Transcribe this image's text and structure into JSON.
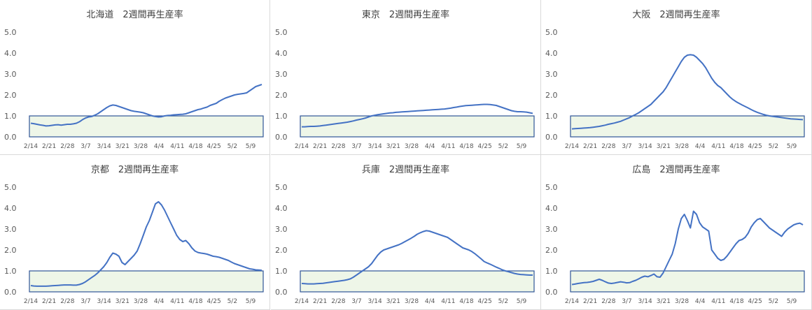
{
  "chart_data": [
    {
      "type": "line",
      "title": "北海道　2週間再生産率",
      "yticks": [
        "0.0",
        "1.0",
        "2.0",
        "3.0",
        "4.0",
        "5.0"
      ],
      "ylim": [
        0,
        5
      ],
      "xticks": [
        "2/14",
        "2/21",
        "2/28",
        "3/7",
        "3/14",
        "3/21",
        "3/28",
        "4/4",
        "4/11",
        "4/18",
        "4/25",
        "5/2",
        "5/9"
      ],
      "shaded_band": [
        0,
        1
      ],
      "series": [
        {
          "values": [
            0.65,
            0.63,
            0.6,
            0.57,
            0.55,
            0.52,
            0.53,
            0.55,
            0.57,
            0.58,
            0.56,
            0.58,
            0.6,
            0.6,
            0.62,
            0.65,
            0.72,
            0.82,
            0.9,
            0.95,
            0.97,
            1.03,
            1.1,
            1.2,
            1.3,
            1.4,
            1.48,
            1.52,
            1.5,
            1.45,
            1.4,
            1.35,
            1.3,
            1.25,
            1.22,
            1.2,
            1.18,
            1.15,
            1.1,
            1.05,
            1.0,
            0.97,
            0.95,
            0.96,
            1.0,
            1.02,
            1.03,
            1.05,
            1.06,
            1.07,
            1.08,
            1.1,
            1.15,
            1.2,
            1.25,
            1.3,
            1.33,
            1.38,
            1.42,
            1.5,
            1.55,
            1.6,
            1.7,
            1.78,
            1.85,
            1.9,
            1.95,
            2.0,
            2.03,
            2.05,
            2.07,
            2.1,
            2.2,
            2.3,
            2.4,
            2.45,
            2.5
          ]
        }
      ]
    },
    {
      "type": "line",
      "title": "東京　2週間再生産率",
      "yticks": [
        "0.0",
        "1.0",
        "2.0",
        "3.0",
        "4.0",
        "5.0"
      ],
      "ylim": [
        0,
        5
      ],
      "xticks": [
        "2/14",
        "2/21",
        "2/28",
        "3/7",
        "3/14",
        "3/21",
        "3/28",
        "4/4",
        "4/11",
        "4/18",
        "4/25",
        "5/2",
        "5/9"
      ],
      "shaded_band": [
        0,
        1
      ],
      "series": [
        {
          "values": [
            0.48,
            0.48,
            0.49,
            0.5,
            0.5,
            0.51,
            0.52,
            0.54,
            0.56,
            0.58,
            0.6,
            0.62,
            0.64,
            0.66,
            0.68,
            0.7,
            0.73,
            0.76,
            0.8,
            0.83,
            0.86,
            0.9,
            0.95,
            1.0,
            1.03,
            1.06,
            1.08,
            1.1,
            1.12,
            1.14,
            1.15,
            1.17,
            1.18,
            1.19,
            1.2,
            1.21,
            1.22,
            1.23,
            1.24,
            1.25,
            1.26,
            1.27,
            1.28,
            1.29,
            1.3,
            1.31,
            1.32,
            1.33,
            1.35,
            1.37,
            1.4,
            1.42,
            1.45,
            1.47,
            1.49,
            1.5,
            1.51,
            1.52,
            1.53,
            1.54,
            1.55,
            1.55,
            1.54,
            1.52,
            1.5,
            1.45,
            1.4,
            1.35,
            1.3,
            1.25,
            1.22,
            1.2,
            1.2,
            1.19,
            1.18,
            1.15,
            1.12
          ]
        }
      ]
    },
    {
      "type": "line",
      "title": "大阪　2週間再生産率",
      "yticks": [
        "0.0",
        "1.0",
        "2.0",
        "3.0",
        "4.0",
        "5.0"
      ],
      "ylim": [
        0,
        5
      ],
      "xticks": [
        "2/14",
        "2/21",
        "2/28",
        "3/7",
        "3/14",
        "3/21",
        "3/28",
        "4/4",
        "4/11",
        "4/18",
        "4/25",
        "5/2",
        "5/9"
      ],
      "shaded_band": [
        0,
        1
      ],
      "series": [
        {
          "values": [
            0.38,
            0.39,
            0.4,
            0.41,
            0.42,
            0.43,
            0.44,
            0.46,
            0.48,
            0.5,
            0.53,
            0.56,
            0.6,
            0.63,
            0.66,
            0.7,
            0.74,
            0.8,
            0.86,
            0.92,
            1.0,
            1.07,
            1.15,
            1.25,
            1.35,
            1.45,
            1.55,
            1.7,
            1.85,
            2.0,
            2.15,
            2.35,
            2.6,
            2.85,
            3.1,
            3.35,
            3.6,
            3.8,
            3.9,
            3.92,
            3.9,
            3.8,
            3.65,
            3.5,
            3.3,
            3.05,
            2.8,
            2.6,
            2.45,
            2.35,
            2.2,
            2.05,
            1.9,
            1.78,
            1.68,
            1.6,
            1.52,
            1.45,
            1.38,
            1.3,
            1.23,
            1.17,
            1.12,
            1.07,
            1.03,
            1.0,
            0.98,
            0.96,
            0.94,
            0.92,
            0.9,
            0.88,
            0.86,
            0.85,
            0.84,
            0.83,
            0.82
          ]
        }
      ]
    },
    {
      "type": "line",
      "title": "京都　2週間再生産率",
      "yticks": [
        "0.0",
        "1.0",
        "2.0",
        "3.0",
        "4.0",
        "5.0"
      ],
      "ylim": [
        0,
        5
      ],
      "xticks": [
        "2/14",
        "2/21",
        "2/28",
        "3/7",
        "3/14",
        "3/21",
        "3/28",
        "4/4",
        "4/11",
        "4/18",
        "4/25",
        "5/2",
        "5/9"
      ],
      "shaded_band": [
        0,
        1
      ],
      "series": [
        {
          "values": [
            0.3,
            0.28,
            0.27,
            0.27,
            0.27,
            0.27,
            0.28,
            0.29,
            0.3,
            0.31,
            0.32,
            0.33,
            0.33,
            0.33,
            0.32,
            0.32,
            0.35,
            0.4,
            0.48,
            0.58,
            0.68,
            0.78,
            0.9,
            1.05,
            1.2,
            1.4,
            1.65,
            1.85,
            1.8,
            1.7,
            1.4,
            1.3,
            1.45,
            1.6,
            1.75,
            1.95,
            2.3,
            2.7,
            3.1,
            3.4,
            3.8,
            4.2,
            4.3,
            4.15,
            3.9,
            3.6,
            3.3,
            3.0,
            2.7,
            2.5,
            2.4,
            2.45,
            2.3,
            2.1,
            1.95,
            1.88,
            1.85,
            1.83,
            1.8,
            1.75,
            1.7,
            1.68,
            1.65,
            1.6,
            1.55,
            1.5,
            1.42,
            1.35,
            1.3,
            1.25,
            1.2,
            1.15,
            1.1,
            1.08,
            1.05,
            1.04,
            1.03
          ]
        }
      ]
    },
    {
      "type": "line",
      "title": "兵庫　2週間再生産率",
      "yticks": [
        "0.0",
        "1.0",
        "2.0",
        "3.0",
        "4.0",
        "5.0"
      ],
      "ylim": [
        0,
        5
      ],
      "xticks": [
        "2/14",
        "2/21",
        "2/28",
        "3/7",
        "3/14",
        "3/21",
        "3/28",
        "4/4",
        "4/11",
        "4/18",
        "4/25",
        "5/2",
        "5/9"
      ],
      "shaded_band": [
        0,
        1
      ],
      "series": [
        {
          "values": [
            0.4,
            0.39,
            0.38,
            0.38,
            0.38,
            0.39,
            0.4,
            0.41,
            0.43,
            0.45,
            0.47,
            0.49,
            0.51,
            0.53,
            0.55,
            0.58,
            0.62,
            0.7,
            0.8,
            0.9,
            1.0,
            1.1,
            1.2,
            1.35,
            1.55,
            1.75,
            1.9,
            2.0,
            2.05,
            2.1,
            2.15,
            2.2,
            2.25,
            2.32,
            2.4,
            2.48,
            2.56,
            2.65,
            2.75,
            2.82,
            2.88,
            2.92,
            2.9,
            2.85,
            2.8,
            2.75,
            2.7,
            2.65,
            2.6,
            2.5,
            2.4,
            2.3,
            2.2,
            2.1,
            2.05,
            2.0,
            1.92,
            1.82,
            1.7,
            1.58,
            1.45,
            1.38,
            1.32,
            1.25,
            1.18,
            1.12,
            1.05,
            1.0,
            0.96,
            0.92,
            0.88,
            0.85,
            0.83,
            0.82,
            0.81,
            0.8,
            0.8
          ]
        }
      ]
    },
    {
      "type": "line",
      "title": "広島　2週間再生産率",
      "yticks": [
        "0.0",
        "1.0",
        "2.0",
        "3.0",
        "4.0",
        "5.0"
      ],
      "ylim": [
        0,
        5
      ],
      "xticks": [
        "2/14",
        "2/21",
        "2/28",
        "3/7",
        "3/14",
        "3/21",
        "3/28",
        "4/4",
        "4/11",
        "4/18",
        "4/25",
        "5/2",
        "5/9"
      ],
      "shaded_band": [
        0,
        1
      ],
      "series": [
        {
          "values": [
            0.35,
            0.37,
            0.4,
            0.42,
            0.44,
            0.45,
            0.47,
            0.5,
            0.55,
            0.6,
            0.55,
            0.48,
            0.42,
            0.4,
            0.42,
            0.45,
            0.48,
            0.46,
            0.43,
            0.44,
            0.5,
            0.55,
            0.62,
            0.7,
            0.75,
            0.72,
            0.78,
            0.85,
            0.72,
            0.7,
            0.9,
            1.2,
            1.5,
            1.8,
            2.3,
            3.0,
            3.5,
            3.7,
            3.4,
            3.05,
            3.85,
            3.7,
            3.3,
            3.1,
            3.0,
            2.9,
            2.0,
            1.8,
            1.6,
            1.5,
            1.55,
            1.7,
            1.9,
            2.1,
            2.3,
            2.45,
            2.5,
            2.6,
            2.8,
            3.1,
            3.3,
            3.45,
            3.5,
            3.35,
            3.2,
            3.05,
            2.95,
            2.85,
            2.75,
            2.65,
            2.85,
            3.0,
            3.1,
            3.2,
            3.25,
            3.28,
            3.2
          ]
        }
      ]
    }
  ]
}
